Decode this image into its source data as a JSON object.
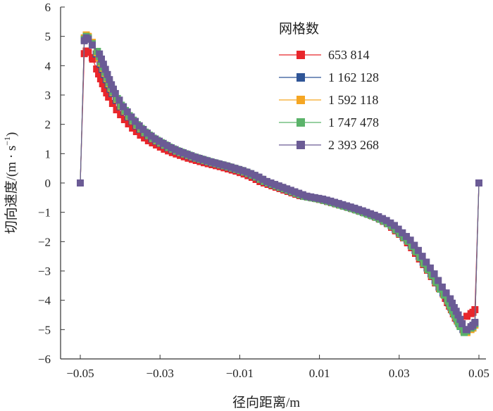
{
  "chart_data": {
    "type": "line",
    "title": "",
    "xlabel": "径向距离/m",
    "ylabel": "切向速度/(m·s⁻¹)",
    "ylabel_parts": {
      "main": "切向速度/(m · s",
      "sup": "−1",
      "close": ")"
    },
    "xlim": [
      -0.051,
      0.051
    ],
    "ylim": [
      -6,
      6
    ],
    "xticks": [
      -0.05,
      -0.03,
      -0.01,
      0.01,
      0.03,
      0.05
    ],
    "xtick_labels": [
      "−0.05",
      "−0.03",
      "−0.01",
      "0.01",
      "0.03",
      "0.05"
    ],
    "yticks": [
      -6,
      -5,
      -4,
      -3,
      -2,
      -1,
      0,
      1,
      2,
      3,
      4,
      5,
      6
    ],
    "ytick_labels": [
      "−6",
      "−5",
      "−4",
      "−3",
      "−2",
      "−1",
      "0",
      "1",
      "2",
      "3",
      "4",
      "5",
      "6"
    ],
    "grid": false,
    "legend": {
      "title": "网格数",
      "position": "top-right",
      "entries": [
        "653 814",
        "1 162 128",
        "1 592 118",
        "1 747 478",
        "2 393 268"
      ]
    },
    "profile": {
      "x": [
        -0.05,
        -0.049,
        -0.0485,
        -0.048,
        -0.047,
        -0.046,
        -0.045,
        -0.044,
        -0.043,
        -0.042,
        -0.04,
        -0.038,
        -0.036,
        -0.034,
        -0.032,
        -0.03,
        -0.028,
        -0.026,
        -0.024,
        -0.022,
        -0.02,
        -0.018,
        -0.016,
        -0.014,
        -0.012,
        -0.01,
        -0.008,
        -0.006,
        -0.004,
        -0.002,
        0.0,
        0.002,
        0.004,
        0.006,
        0.008,
        0.01,
        0.012,
        0.014,
        0.016,
        0.018,
        0.02,
        0.022,
        0.024,
        0.026,
        0.028,
        0.03,
        0.032,
        0.034,
        0.036,
        0.038,
        0.04,
        0.042,
        0.043,
        0.044,
        0.045,
        0.046,
        0.047,
        0.048,
        0.0485,
        0.049,
        0.05
      ],
      "y": [
        0,
        4.9,
        5.0,
        4.95,
        4.75,
        4.4,
        4.05,
        3.7,
        3.35,
        3.05,
        2.6,
        2.25,
        1.95,
        1.7,
        1.5,
        1.35,
        1.2,
        1.08,
        0.98,
        0.88,
        0.8,
        0.72,
        0.65,
        0.58,
        0.5,
        0.42,
        0.32,
        0.2,
        0.05,
        -0.05,
        -0.15,
        -0.25,
        -0.35,
        -0.45,
        -0.5,
        -0.55,
        -0.62,
        -0.7,
        -0.78,
        -0.86,
        -0.95,
        -1.05,
        -1.15,
        -1.28,
        -1.45,
        -1.7,
        -1.95,
        -2.3,
        -2.7,
        -3.1,
        -3.55,
        -3.95,
        -4.25,
        -4.5,
        -4.8,
        -5.0,
        -5.05,
        -4.95,
        -4.9,
        -4.8,
        0
      ]
    },
    "series": [
      {
        "name": "653 814",
        "color": "#e8262b",
        "marker": "square",
        "shift": -0.0009,
        "scale": 0.96,
        "peak": 4.5,
        "peak_x": 0.0485,
        "marker_step": 1.0
      },
      {
        "name": "1 162 128",
        "color": "#2f5597",
        "marker": "square",
        "shift": 0.0,
        "scale": 1.0,
        "peak": 5.0,
        "peak_x": 0.0482,
        "marker_step": 1.0
      },
      {
        "name": "1 592 118",
        "color": "#f5a623",
        "marker": "square",
        "shift": 0.0002,
        "scale": 1.01,
        "peak": 5.05,
        "peak_x": 0.0481,
        "marker_step": 1.0
      },
      {
        "name": "1 747 478",
        "color": "#5bb36a",
        "marker": "square",
        "shift": 0.0003,
        "scale": 1.02,
        "peak": 5.0,
        "peak_x": 0.0482,
        "marker_step": 1.0
      },
      {
        "name": "2 393 268",
        "color": "#6b5b95",
        "marker": "square",
        "shift": 0.0008,
        "scale": 1.0,
        "peak": 4.95,
        "peak_x": 0.0483,
        "marker_step": 1.0
      }
    ]
  }
}
